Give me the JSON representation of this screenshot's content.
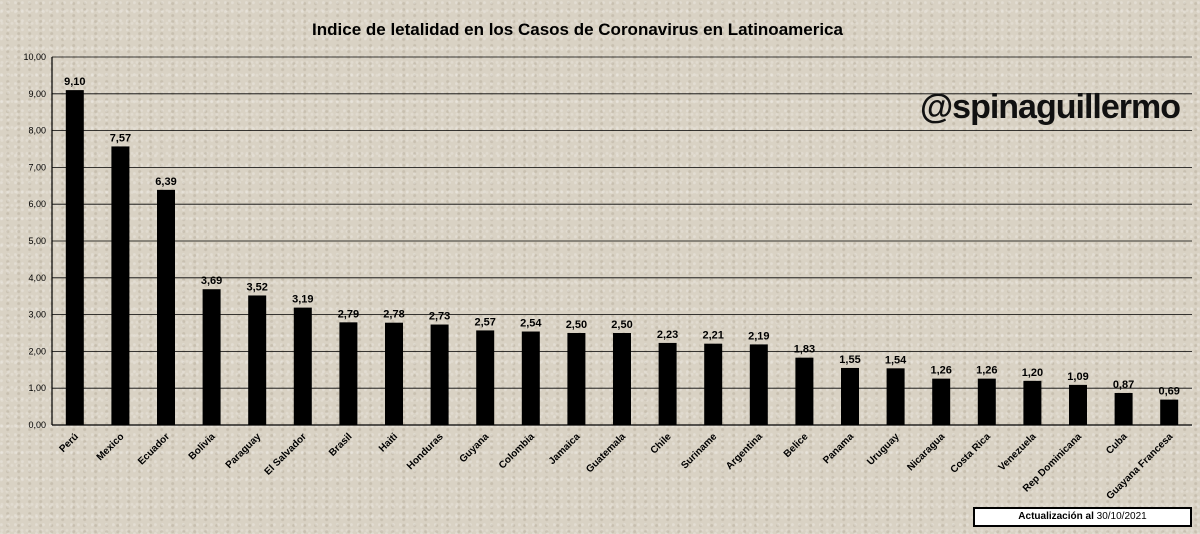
{
  "chart_data": {
    "type": "bar",
    "title": "Indice de letalidad en los Casos de Coronavirus en Latinoamerica",
    "xlabel": "",
    "ylabel": "",
    "ylim": [
      0,
      10
    ],
    "yticks": [
      "0,00",
      "1,00",
      "2,00",
      "3,00",
      "4,00",
      "5,00",
      "6,00",
      "7,00",
      "8,00",
      "9,00",
      "10,00"
    ],
    "grid": true,
    "legend": "none",
    "bar_color": "#000000",
    "categories": [
      "Perú",
      "Mexico",
      "Ecuador",
      "Bolivia",
      "Paraguay",
      "El Salvador",
      "Brasil",
      "Haiti",
      "Honduras",
      "Guyana",
      "Colombia",
      "Jamaica",
      "Guatemala",
      "Chile",
      "Suriname",
      "Argentina",
      "Belice",
      "Panama",
      "Uruguay",
      "Nicaragua",
      "Costa Rica",
      "Venezuela",
      "Rep Dominicana",
      "Cuba",
      "Guayana Francesa"
    ],
    "values": [
      9.1,
      7.57,
      6.39,
      3.69,
      3.52,
      3.19,
      2.79,
      2.78,
      2.73,
      2.57,
      2.54,
      2.5,
      2.5,
      2.23,
      2.21,
      2.19,
      1.83,
      1.55,
      1.54,
      1.26,
      1.26,
      1.2,
      1.09,
      0.87,
      0.69
    ],
    "value_labels": [
      "9,10",
      "7,57",
      "6,39",
      "3,69",
      "3,52",
      "3,19",
      "2,79",
      "2,78",
      "2,73",
      "2,57",
      "2,54",
      "2,50",
      "2,50",
      "2,23",
      "2,21",
      "2,19",
      "1,83",
      "1,55",
      "1,54",
      "1,26",
      "1,26",
      "1,20",
      "1,09",
      "0,87",
      "0,69"
    ]
  },
  "watermark": "@spinaguillermo",
  "update": {
    "label": "Actualización al",
    "date": "30/10/2021"
  }
}
